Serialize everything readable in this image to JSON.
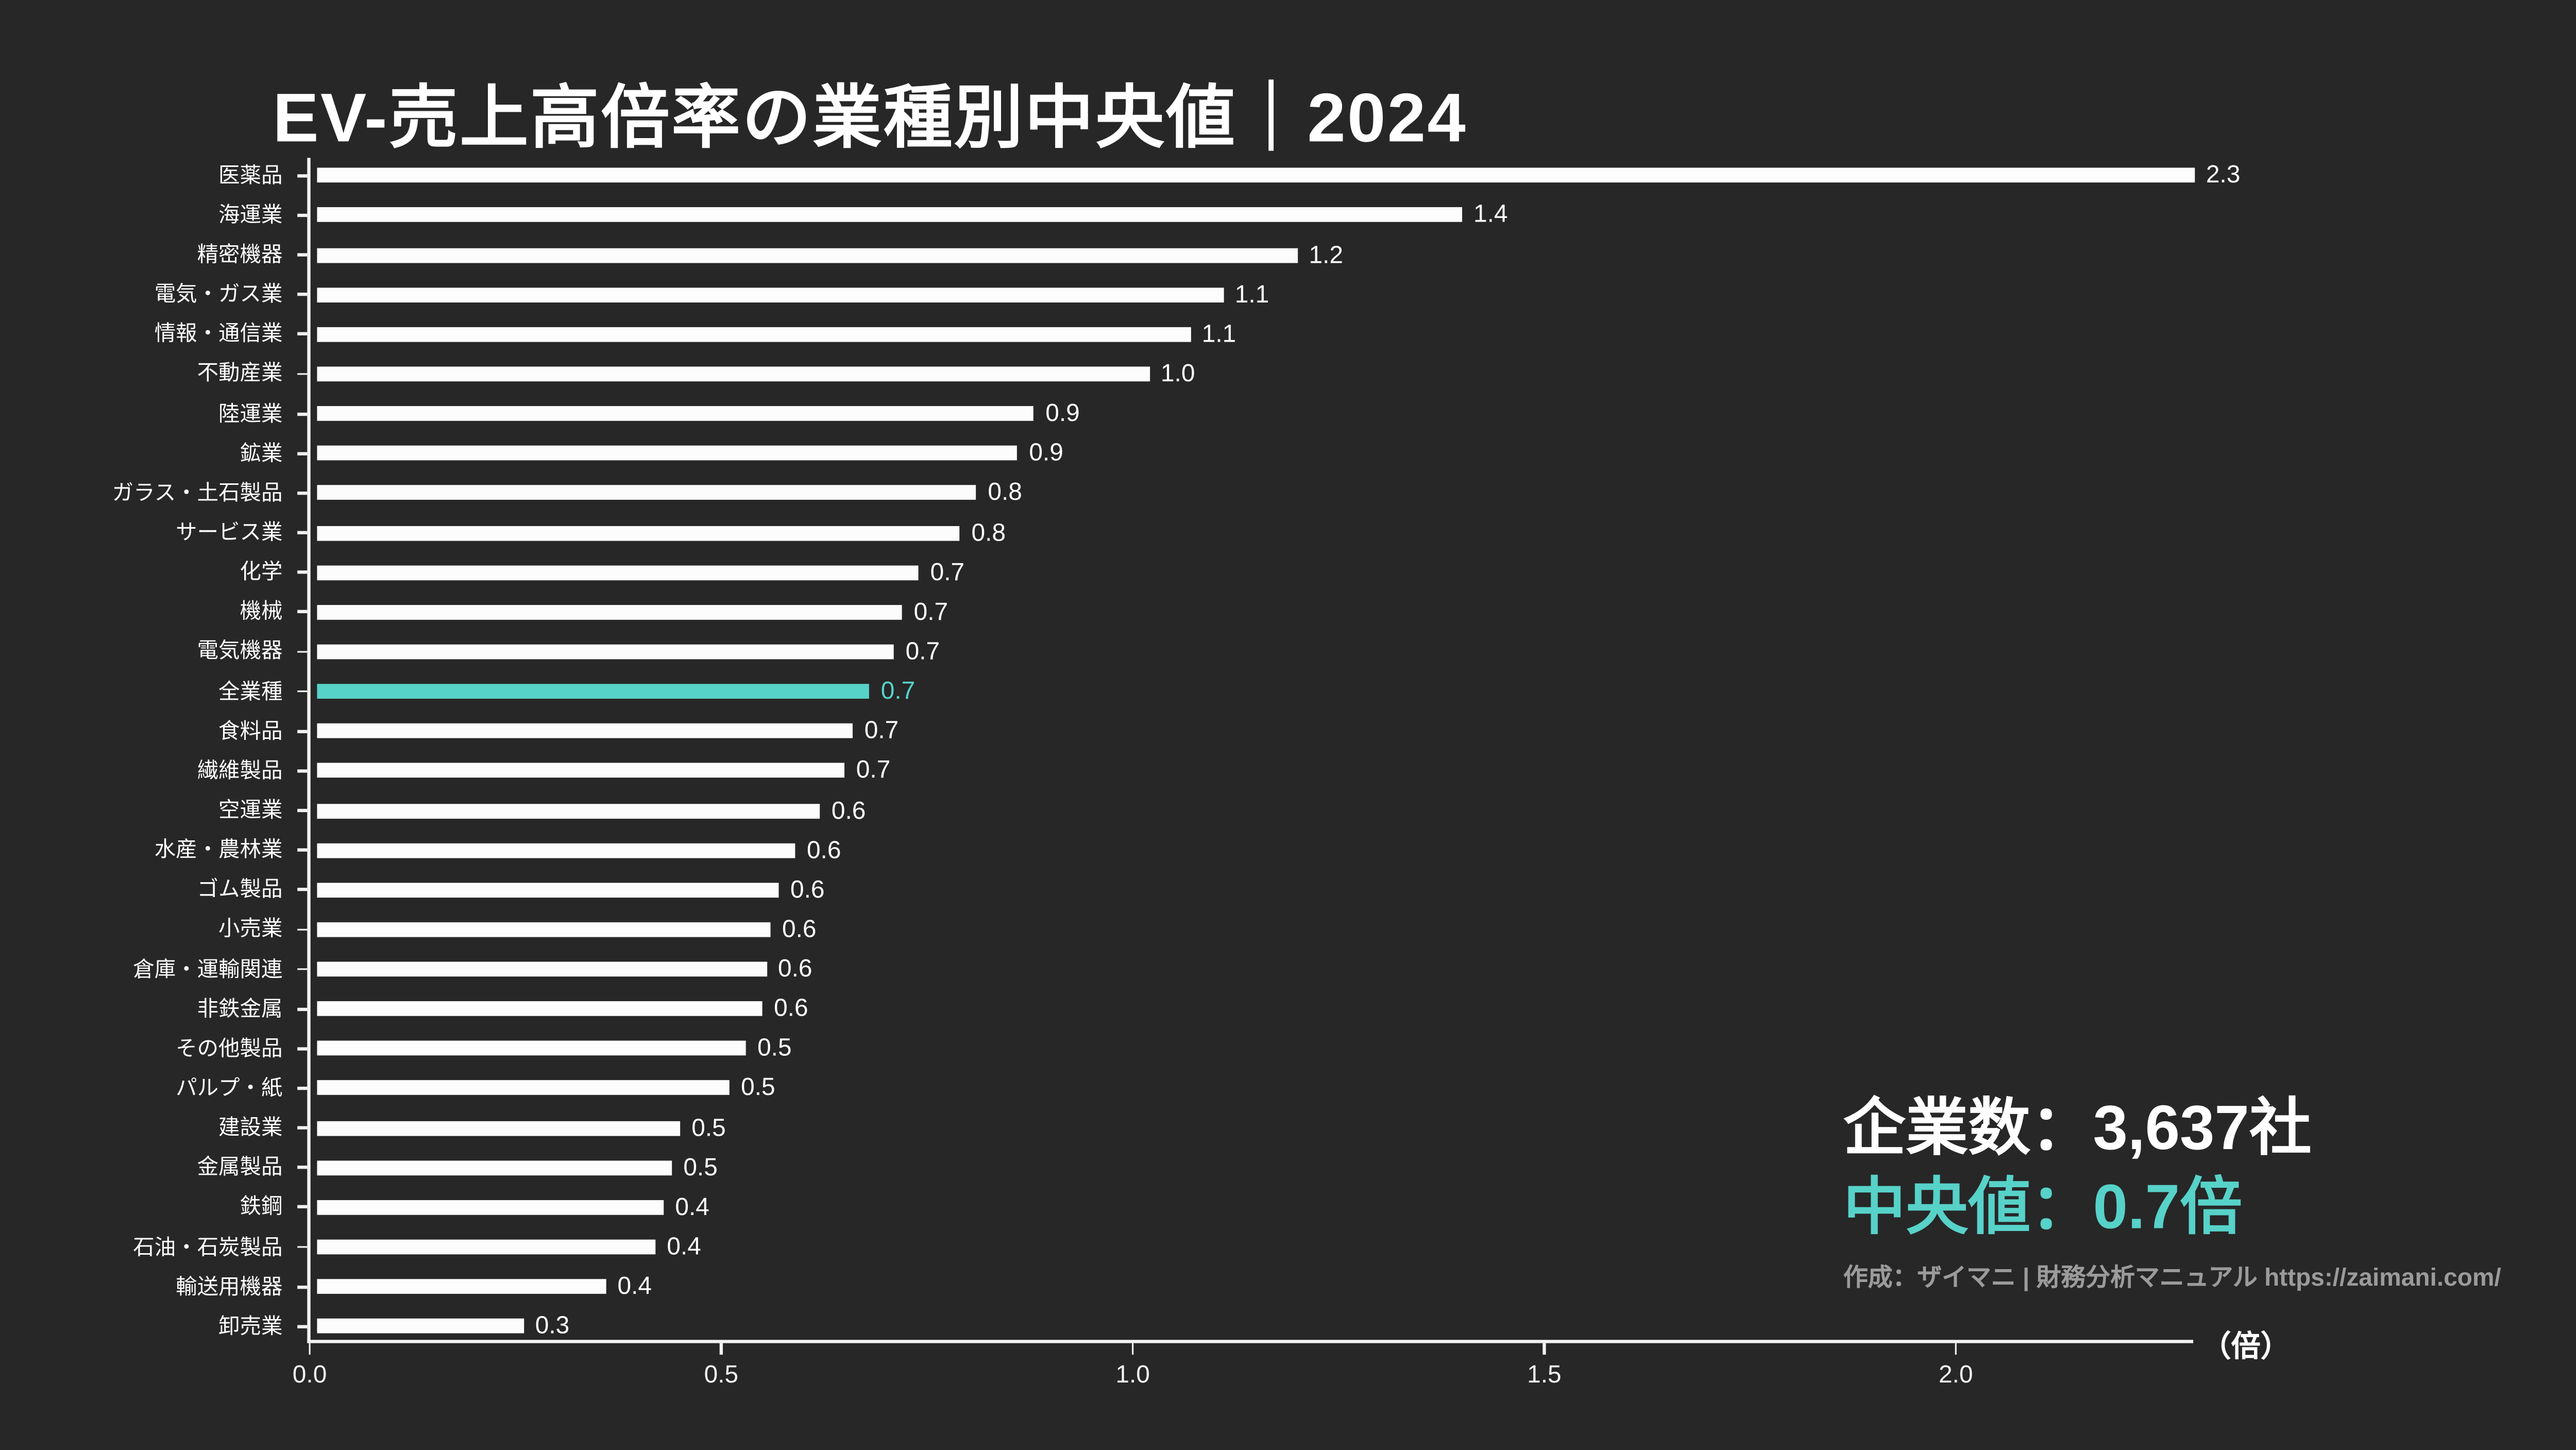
{
  "title": "EV-売上高倍率の業種別中央値｜2024",
  "chart_data": {
    "type": "bar",
    "orientation": "horizontal",
    "title": "EV-売上高倍率の業種別中央値｜2024",
    "unit_label": "（倍）",
    "categories": [
      "医薬品",
      "海運業",
      "精密機器",
      "電気・ガス業",
      "情報・通信業",
      "不動産業",
      "陸運業",
      "鉱業",
      "ガラス・土石製品",
      "サービス業",
      "化学",
      "機械",
      "電気機器",
      "全業種",
      "食料品",
      "繊維製品",
      "空運業",
      "水産・農林業",
      "ゴム製品",
      "小売業",
      "倉庫・運輸関連",
      "非鉄金属",
      "その他製品",
      "パルプ・紙",
      "建設業",
      "金属製品",
      "鉄鋼",
      "石油・石炭製品",
      "輸送用機器",
      "卸売業"
    ],
    "values": [
      2.3,
      1.4,
      1.2,
      1.1,
      1.1,
      1.0,
      0.9,
      0.9,
      0.8,
      0.8,
      0.7,
      0.7,
      0.7,
      0.7,
      0.7,
      0.7,
      0.6,
      0.6,
      0.6,
      0.6,
      0.6,
      0.6,
      0.5,
      0.5,
      0.5,
      0.5,
      0.4,
      0.4,
      0.4,
      0.3
    ],
    "bar_lengths": [
      2.29,
      1.4,
      1.2,
      1.11,
      1.07,
      1.02,
      0.88,
      0.86,
      0.81,
      0.79,
      0.74,
      0.72,
      0.71,
      0.68,
      0.66,
      0.65,
      0.62,
      0.59,
      0.57,
      0.56,
      0.555,
      0.55,
      0.53,
      0.51,
      0.45,
      0.44,
      0.43,
      0.42,
      0.36,
      0.26
    ],
    "highlight_index": 13,
    "x_ticks": [
      0.0,
      0.5,
      1.0,
      1.5,
      2.0
    ],
    "x_tick_labels": [
      "0.0",
      "0.5",
      "1.0",
      "1.5",
      "2.0"
    ],
    "xlim": [
      0,
      2.35
    ],
    "grid": false,
    "legend": "none",
    "bar_color": "#fcfcfc",
    "highlight_color": "#57d2c9",
    "value_label_color": "#ffffff"
  },
  "stats": {
    "company_count": "企業数：3,637社",
    "median": "中央値：0.7倍",
    "median_color": "#57d2c9"
  },
  "credit": "作成：ザイマニ | 財務分析マニュアル https://zaimani.com/",
  "colors": {
    "background": "#272727",
    "axis": "#f2f2f2",
    "text_primary": "#ffffff",
    "text_muted": "#9b9b9b",
    "accent_teal": "#57d2c9"
  }
}
